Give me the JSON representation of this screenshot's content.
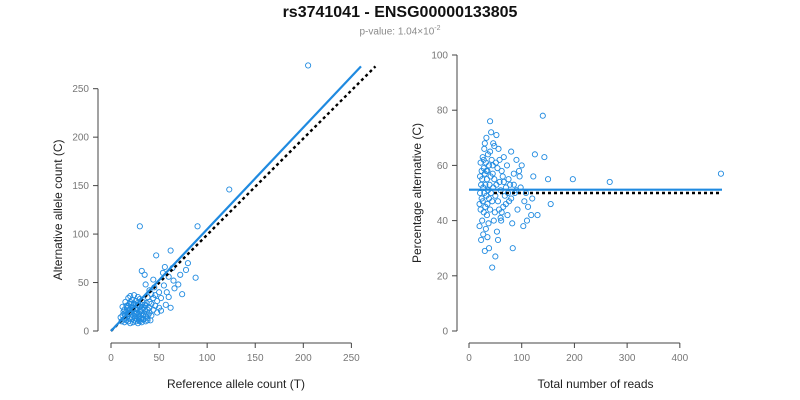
{
  "title": "rs3741041 - ENSG00000133805",
  "subtitle": {
    "prefix": "p-value: 1.04×10",
    "exponent": "-2"
  },
  "colors": {
    "series": "#1f8ae0",
    "reference_line": "#000000",
    "axis": "#444444",
    "tick_text": "#777777"
  },
  "chart_data": [
    {
      "type": "scatter",
      "xlabel": "Reference allele count (T)",
      "ylabel": "Alternative allele count (C)",
      "xlim": [
        0,
        260
      ],
      "ylim": [
        0,
        260
      ],
      "xticks": [
        0,
        50,
        100,
        150,
        200,
        250
      ],
      "yticks": [
        0,
        50,
        100,
        150,
        200,
        250
      ],
      "grid": false,
      "fit_line": {
        "style": "solid",
        "points": [
          [
            0,
            0
          ],
          [
            260,
            273
          ]
        ]
      },
      "reference_line": {
        "style": "dotted",
        "points": [
          [
            0,
            0
          ],
          [
            275,
            273
          ]
        ]
      },
      "points": [
        [
          205,
          274
        ],
        [
          123,
          146
        ],
        [
          90,
          108
        ],
        [
          30,
          108
        ],
        [
          62,
          83
        ],
        [
          47,
          78
        ],
        [
          80,
          70
        ],
        [
          88,
          55
        ],
        [
          64,
          65
        ],
        [
          56,
          66
        ],
        [
          54,
          60
        ],
        [
          60,
          56
        ],
        [
          70,
          48
        ],
        [
          66,
          44
        ],
        [
          74,
          38
        ],
        [
          60,
          35
        ],
        [
          50,
          40
        ],
        [
          45,
          45
        ],
        [
          42,
          38
        ],
        [
          40,
          42
        ],
        [
          38,
          35
        ],
        [
          36,
          48
        ],
        [
          35,
          58
        ],
        [
          32,
          62
        ],
        [
          44,
          53
        ],
        [
          48,
          31
        ],
        [
          52,
          34
        ],
        [
          58,
          40
        ],
        [
          57,
          27
        ],
        [
          62,
          24
        ],
        [
          15,
          30
        ],
        [
          18,
          34
        ],
        [
          20,
          36
        ],
        [
          22,
          32
        ],
        [
          24,
          37
        ],
        [
          26,
          31
        ],
        [
          28,
          35
        ],
        [
          30,
          33
        ],
        [
          33,
          30
        ],
        [
          35,
          27
        ],
        [
          37,
          29
        ],
        [
          40,
          24
        ],
        [
          42,
          28
        ],
        [
          44,
          22
        ],
        [
          46,
          26
        ],
        [
          48,
          19
        ],
        [
          50,
          24
        ],
        [
          52,
          21
        ],
        [
          12,
          25
        ],
        [
          14,
          22
        ],
        [
          16,
          20
        ],
        [
          18,
          26
        ],
        [
          19,
          18
        ],
        [
          20,
          22
        ],
        [
          21,
          28
        ],
        [
          22,
          17
        ],
        [
          23,
          24
        ],
        [
          24,
          20
        ],
        [
          25,
          15
        ],
        [
          26,
          23
        ],
        [
          27,
          19
        ],
        [
          28,
          26
        ],
        [
          29,
          14
        ],
        [
          30,
          21
        ],
        [
          31,
          17
        ],
        [
          32,
          24
        ],
        [
          33,
          12
        ],
        [
          34,
          18
        ],
        [
          35,
          22
        ],
        [
          36,
          15
        ],
        [
          37,
          20
        ],
        [
          38,
          13
        ],
        [
          39,
          17
        ],
        [
          40,
          19
        ],
        [
          41,
          11
        ],
        [
          42,
          16
        ],
        [
          10,
          14
        ],
        [
          11,
          10
        ],
        [
          12,
          16
        ],
        [
          13,
          12
        ],
        [
          14,
          9
        ],
        [
          15,
          13
        ],
        [
          16,
          11
        ],
        [
          17,
          15
        ],
        [
          18,
          10
        ],
        [
          19,
          13
        ],
        [
          20,
          8
        ],
        [
          21,
          12
        ],
        [
          22,
          14
        ],
        [
          23,
          9
        ],
        [
          24,
          11
        ],
        [
          25,
          13
        ],
        [
          26,
          10
        ],
        [
          27,
          12
        ],
        [
          28,
          8
        ],
        [
          29,
          11
        ],
        [
          30,
          10
        ],
        [
          31,
          13
        ],
        [
          32,
          9
        ],
        [
          34,
          12
        ],
        [
          36,
          10
        ],
        [
          38,
          11
        ],
        [
          14,
          18
        ],
        [
          17,
          17
        ],
        [
          19,
          22
        ],
        [
          21,
          19
        ],
        [
          23,
          16
        ],
        [
          25,
          18
        ],
        [
          27,
          22
        ],
        [
          29,
          18
        ],
        [
          31,
          20
        ],
        [
          33,
          16
        ],
        [
          16,
          26
        ],
        [
          20,
          30
        ],
        [
          24,
          28
        ],
        [
          28,
          29
        ],
        [
          32,
          27
        ],
        [
          36,
          26
        ],
        [
          40,
          30
        ],
        [
          44,
          34
        ],
        [
          13,
          20
        ],
        [
          15,
          16
        ],
        [
          17,
          24
        ],
        [
          19,
          28
        ],
        [
          22,
          25
        ],
        [
          26,
          27
        ],
        [
          30,
          25
        ],
        [
          34,
          24
        ],
        [
          38,
          22
        ],
        [
          46,
          37
        ],
        [
          55,
          47
        ],
        [
          65,
          52
        ],
        [
          72,
          58
        ],
        [
          78,
          63
        ]
      ]
    },
    {
      "type": "scatter",
      "xlabel": "Total number of reads",
      "ylabel": "Percentage alternative (C)",
      "xlim": [
        0,
        480
      ],
      "ylim": [
        0,
        100
      ],
      "xticks": [
        0,
        100,
        200,
        300,
        400
      ],
      "yticks": [
        0,
        20,
        40,
        60,
        80,
        100
      ],
      "grid": false,
      "fit_line": {
        "style": "solid",
        "y": 51.2
      },
      "reference_line": {
        "style": "dotted",
        "y": 50
      },
      "points": [
        [
          478,
          57
        ],
        [
          267,
          54
        ],
        [
          197,
          55
        ],
        [
          140,
          78
        ],
        [
          143,
          63
        ],
        [
          150,
          55
        ],
        [
          155,
          46
        ],
        [
          125,
          64
        ],
        [
          122,
          56
        ],
        [
          120,
          48
        ],
        [
          118,
          42
        ],
        [
          112,
          45
        ],
        [
          108,
          50
        ],
        [
          105,
          47
        ],
        [
          103,
          38
        ],
        [
          100,
          60
        ],
        [
          98,
          52
        ],
        [
          95,
          58
        ],
        [
          92,
          44
        ],
        [
          90,
          62
        ],
        [
          87,
          50
        ],
        [
          85,
          57
        ],
        [
          83,
          30
        ],
        [
          82,
          39
        ],
        [
          80,
          65
        ],
        [
          78,
          53
        ],
        [
          76,
          47
        ],
        [
          75,
          55
        ],
        [
          73,
          42
        ],
        [
          72,
          60
        ],
        [
          70,
          52
        ],
        [
          68,
          49
        ],
        [
          66,
          63
        ],
        [
          65,
          45
        ],
        [
          64,
          56
        ],
        [
          62,
          58
        ],
        [
          61,
          40
        ],
        [
          60,
          51
        ],
        [
          58,
          54
        ],
        [
          57,
          44
        ],
        [
          56,
          66
        ],
        [
          55,
          47
        ],
        [
          54,
          59
        ],
        [
          53,
          36
        ],
        [
          52,
          53
        ],
        [
          51,
          61
        ],
        [
          50,
          49
        ],
        [
          49,
          43
        ],
        [
          48,
          55
        ],
        [
          47,
          40
        ],
        [
          46,
          68
        ],
        [
          46,
          52
        ],
        [
          45,
          57
        ],
        [
          44,
          47
        ],
        [
          43,
          62
        ],
        [
          42,
          50
        ],
        [
          42,
          72
        ],
        [
          41,
          56
        ],
        [
          40,
          44
        ],
        [
          40,
          76
        ],
        [
          39,
          53
        ],
        [
          38,
          48
        ],
        [
          38,
          60
        ],
        [
          37,
          39
        ],
        [
          36,
          64
        ],
        [
          36,
          51
        ],
        [
          35,
          46
        ],
        [
          35,
          58
        ],
        [
          34,
          42
        ],
        [
          34,
          55
        ],
        [
          33,
          70
        ],
        [
          33,
          49
        ],
        [
          32,
          37
        ],
        [
          32,
          61
        ],
        [
          31,
          53
        ],
        [
          31,
          45
        ],
        [
          30,
          57
        ],
        [
          30,
          29
        ],
        [
          29,
          50
        ],
        [
          29,
          66
        ],
        [
          28,
          43
        ],
        [
          28,
          59
        ],
        [
          27,
          35
        ],
        [
          27,
          52
        ],
        [
          26,
          47
        ],
        [
          26,
          63
        ],
        [
          25,
          55
        ],
        [
          25,
          40
        ],
        [
          24,
          58
        ],
        [
          24,
          48
        ],
        [
          23,
          33
        ],
        [
          23,
          53
        ],
        [
          22,
          61
        ],
        [
          22,
          44
        ],
        [
          21,
          56
        ],
        [
          21,
          50
        ],
        [
          20,
          38
        ],
        [
          20,
          46
        ],
        [
          44,
          23
        ],
        [
          50,
          27
        ],
        [
          38,
          30
        ],
        [
          55,
          33
        ],
        [
          60,
          41
        ],
        [
          35,
          34
        ],
        [
          48,
          67
        ],
        [
          52,
          71
        ],
        [
          40,
          65
        ],
        [
          30,
          68
        ],
        [
          28,
          62
        ],
        [
          33,
          58
        ],
        [
          45,
          60
        ],
        [
          58,
          62
        ],
        [
          66,
          54
        ],
        [
          70,
          46
        ],
        [
          62,
          43
        ],
        [
          74,
          50
        ],
        [
          80,
          48
        ],
        [
          85,
          53
        ],
        [
          90,
          51
        ],
        [
          96,
          56
        ],
        [
          110,
          40
        ],
        [
          130,
          42
        ]
      ]
    }
  ]
}
